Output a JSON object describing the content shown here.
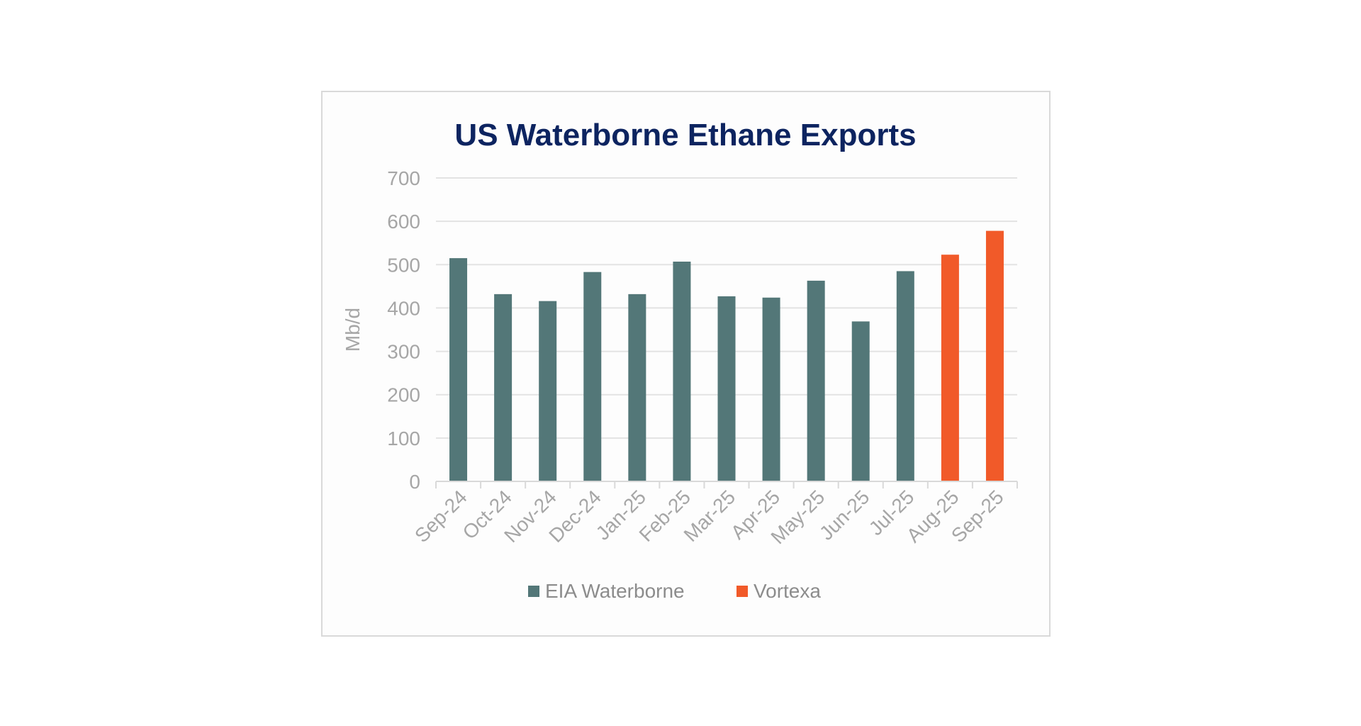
{
  "chart_data": {
    "type": "bar",
    "title": "US Waterborne Ethane Exports",
    "ylabel": "Mb/d",
    "xlabel": "",
    "ylim": [
      0,
      700
    ],
    "yticks": [
      0,
      100,
      200,
      300,
      400,
      500,
      600,
      700
    ],
    "grid": true,
    "legend_position": "bottom",
    "categories": [
      "Sep-24",
      "Oct-24",
      "Nov-24",
      "Dec-24",
      "Jan-25",
      "Feb-25",
      "Mar-25",
      "Apr-25",
      "May-25",
      "Jun-25",
      "Jul-25",
      "Aug-25",
      "Sep-25"
    ],
    "series": [
      {
        "name": "EIA Waterborne",
        "color": "#537778",
        "values": [
          515,
          432,
          416,
          483,
          432,
          507,
          427,
          424,
          463,
          369,
          485,
          null,
          null
        ]
      },
      {
        "name": "Vortexa",
        "color": "#f15a29",
        "values": [
          null,
          null,
          null,
          null,
          null,
          null,
          null,
          null,
          null,
          null,
          null,
          523,
          578
        ]
      }
    ]
  }
}
